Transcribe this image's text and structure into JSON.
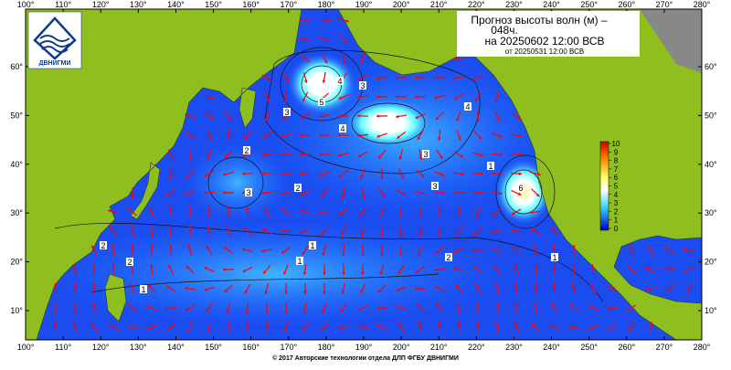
{
  "header": {
    "title_line1": "Прогноз высоты волн (м) –",
    "title_line2": "048ч.",
    "valid_time": "на 20250602 12:00 ВСВ",
    "issue_time": "от 20250531 12:00 ВСВ"
  },
  "logo": {
    "text": "ДВНИГМИ"
  },
  "lon_ticks": [
    {
      "value": 100,
      "label": "100°"
    },
    {
      "value": 110,
      "label": "110°"
    },
    {
      "value": 120,
      "label": "120°"
    },
    {
      "value": 130,
      "label": "130°"
    },
    {
      "value": 140,
      "label": "140°"
    },
    {
      "value": 150,
      "label": "150°"
    },
    {
      "value": 160,
      "label": "160°"
    },
    {
      "value": 170,
      "label": "170°"
    },
    {
      "value": 180,
      "label": "180°"
    },
    {
      "value": 190,
      "label": "190°"
    },
    {
      "value": 200,
      "label": "200°"
    },
    {
      "value": 210,
      "label": "210°"
    },
    {
      "value": 220,
      "label": "220°"
    },
    {
      "value": 230,
      "label": "230°"
    },
    {
      "value": 240,
      "label": "240°"
    },
    {
      "value": 250,
      "label": "250°"
    },
    {
      "value": 260,
      "label": "260°"
    },
    {
      "value": 270,
      "label": "270°"
    },
    {
      "value": 280,
      "label": "280°"
    }
  ],
  "lat_ticks": [
    {
      "value": 10,
      "label": "10°"
    },
    {
      "value": 20,
      "label": "20°"
    },
    {
      "value": 30,
      "label": "30°"
    },
    {
      "value": 40,
      "label": "40°"
    },
    {
      "value": 50,
      "label": "50°"
    },
    {
      "value": 60,
      "label": "60°"
    }
  ],
  "colorbar": {
    "ticks": [
      0,
      1,
      2,
      3,
      4,
      5,
      6,
      7,
      8,
      9,
      10
    ]
  },
  "contour_labels": [
    "5",
    "4",
    "3",
    "3",
    "4",
    "4",
    "3",
    "2",
    "3",
    "2",
    "3",
    "1",
    "1",
    "1",
    "2",
    "1",
    "6",
    "1",
    "2",
    "2"
  ],
  "footer": "© 2017 Авторские технологии отдела ДЛП ФГБУ ДВНИГМИ"
}
